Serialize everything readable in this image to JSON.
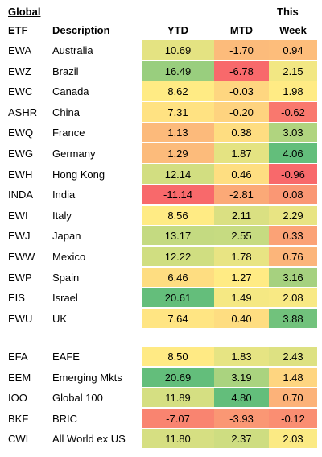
{
  "header": {
    "title": "Global",
    "week_prefix": "This",
    "columns": [
      "ETF",
      "Description",
      "YTD",
      "MTD",
      "Week"
    ]
  },
  "color_scale": {
    "low": "#f8696b",
    "mid": "#ffeb84",
    "high": "#63be7b"
  },
  "sections": [
    {
      "rows": [
        [
          "EWA",
          "Australia",
          "10.69",
          "-1.70",
          "0.94"
        ],
        [
          "EWZ",
          "Brazil",
          "16.49",
          "-6.78",
          "2.15"
        ],
        [
          "EWC",
          "Canada",
          "8.62",
          "-0.03",
          "1.98"
        ],
        [
          "ASHR",
          "China",
          "7.31",
          "-0.20",
          "-0.62"
        ],
        [
          "EWQ",
          "France",
          "1.13",
          "0.38",
          "3.03"
        ],
        [
          "EWG",
          "Germany",
          "1.29",
          "1.87",
          "4.06"
        ],
        [
          "EWH",
          "Hong Kong",
          "12.14",
          "0.46",
          "-0.96"
        ],
        [
          "INDA",
          "India",
          "-11.14",
          "-2.81",
          "0.08"
        ],
        [
          "EWI",
          "Italy",
          "8.56",
          "2.11",
          "2.29"
        ],
        [
          "EWJ",
          "Japan",
          "13.17",
          "2.55",
          "0.33"
        ],
        [
          "EWW",
          "Mexico",
          "12.22",
          "1.78",
          "0.76"
        ],
        [
          "EWP",
          "Spain",
          "6.46",
          "1.27",
          "3.16"
        ],
        [
          "EIS",
          "Israel",
          "20.61",
          "1.49",
          "2.08"
        ],
        [
          "EWU",
          "UK",
          "7.64",
          "0.40",
          "3.88"
        ]
      ]
    },
    {
      "rows": [
        [
          "EFA",
          "EAFE",
          "8.50",
          "1.83",
          "2.43"
        ],
        [
          "EEM",
          "Emerging Mkts",
          "20.69",
          "3.19",
          "1.48"
        ],
        [
          "IOO",
          "Global 100",
          "11.89",
          "4.80",
          "0.70"
        ],
        [
          "BKF",
          "BRIC",
          "-7.07",
          "-3.93",
          "-0.12"
        ],
        [
          "CWI",
          "All World ex US",
          "11.80",
          "2.37",
          "2.03"
        ]
      ]
    }
  ]
}
